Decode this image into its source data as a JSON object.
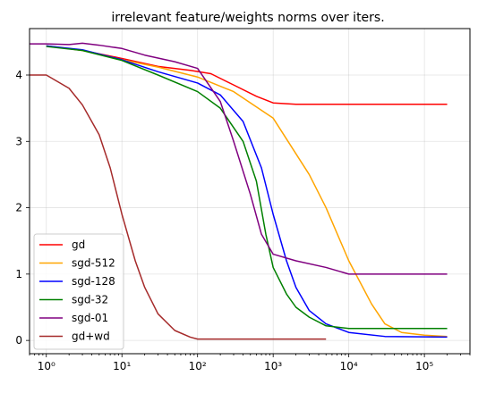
{
  "chart_data": {
    "type": "line",
    "title": "irrelevant feature/weights norms over iters.",
    "xlabel": "",
    "ylabel": "",
    "xscale": "log",
    "xlim": [
      0.6,
      400000
    ],
    "ylim": [
      -0.2,
      4.7
    ],
    "grid": true,
    "legend_position": "lower-left",
    "x_ticks": [
      1,
      10,
      100,
      1000,
      10000,
      100000
    ],
    "x_tick_labels": [
      "10⁰",
      "10¹",
      "10²",
      "10³",
      "10⁴",
      "10⁵"
    ],
    "y_ticks": [
      0,
      1,
      2,
      3,
      4
    ],
    "y_tick_labels": [
      "0",
      "1",
      "2",
      "3",
      "4"
    ],
    "series": [
      {
        "name": "gd",
        "color": "#ff0000",
        "points": [
          [
            1,
            4.44
          ],
          [
            3,
            4.37
          ],
          [
            10,
            4.25
          ],
          [
            30,
            4.13
          ],
          [
            80,
            4.07
          ],
          [
            150,
            4.02
          ],
          [
            300,
            3.85
          ],
          [
            600,
            3.68
          ],
          [
            1000,
            3.58
          ],
          [
            2000,
            3.56
          ],
          [
            10000,
            3.56
          ],
          [
            200000,
            3.56
          ]
        ]
      },
      {
        "name": "sgd-512",
        "color": "#ffa500",
        "points": [
          [
            1,
            4.44
          ],
          [
            3,
            4.37
          ],
          [
            10,
            4.23
          ],
          [
            30,
            4.12
          ],
          [
            100,
            3.97
          ],
          [
            300,
            3.75
          ],
          [
            1000,
            3.35
          ],
          [
            3000,
            2.5
          ],
          [
            5000,
            2.0
          ],
          [
            10000,
            1.2
          ],
          [
            20000,
            0.55
          ],
          [
            30000,
            0.25
          ],
          [
            50000,
            0.12
          ],
          [
            100000,
            0.08
          ],
          [
            200000,
            0.06
          ]
        ]
      },
      {
        "name": "sgd-128",
        "color": "#0000ff",
        "points": [
          [
            1,
            4.44
          ],
          [
            3,
            4.38
          ],
          [
            10,
            4.23
          ],
          [
            30,
            4.05
          ],
          [
            100,
            3.88
          ],
          [
            200,
            3.7
          ],
          [
            400,
            3.3
          ],
          [
            700,
            2.6
          ],
          [
            1000,
            1.9
          ],
          [
            1500,
            1.2
          ],
          [
            2000,
            0.8
          ],
          [
            3000,
            0.45
          ],
          [
            5000,
            0.25
          ],
          [
            10000,
            0.12
          ],
          [
            30000,
            0.06
          ],
          [
            200000,
            0.05
          ]
        ]
      },
      {
        "name": "sgd-32",
        "color": "#008000",
        "points": [
          [
            1,
            4.43
          ],
          [
            3,
            4.37
          ],
          [
            10,
            4.22
          ],
          [
            30,
            4.0
          ],
          [
            100,
            3.75
          ],
          [
            200,
            3.5
          ],
          [
            400,
            3.0
          ],
          [
            600,
            2.4
          ],
          [
            800,
            1.6
          ],
          [
            1000,
            1.1
          ],
          [
            1500,
            0.7
          ],
          [
            2000,
            0.5
          ],
          [
            3000,
            0.35
          ],
          [
            5000,
            0.22
          ],
          [
            10000,
            0.18
          ],
          [
            100000,
            0.18
          ],
          [
            200000,
            0.18
          ]
        ]
      },
      {
        "name": "sgd-01",
        "color": "#800080",
        "points": [
          [
            0.6,
            4.47
          ],
          [
            1,
            4.47
          ],
          [
            2,
            4.46
          ],
          [
            3,
            4.48
          ],
          [
            5,
            4.45
          ],
          [
            10,
            4.4
          ],
          [
            20,
            4.3
          ],
          [
            50,
            4.2
          ],
          [
            100,
            4.1
          ],
          [
            200,
            3.6
          ],
          [
            300,
            3.0
          ],
          [
            500,
            2.2
          ],
          [
            700,
            1.6
          ],
          [
            1000,
            1.3
          ],
          [
            2000,
            1.2
          ],
          [
            5000,
            1.1
          ],
          [
            10000,
            1.0
          ],
          [
            200000,
            1.0
          ]
        ]
      },
      {
        "name": "gd+wd",
        "color": "#a52a2a",
        "points": [
          [
            0.6,
            4.0
          ],
          [
            1,
            4.0
          ],
          [
            2,
            3.8
          ],
          [
            3,
            3.55
          ],
          [
            5,
            3.1
          ],
          [
            7,
            2.6
          ],
          [
            10,
            1.9
          ],
          [
            15,
            1.2
          ],
          [
            20,
            0.8
          ],
          [
            30,
            0.4
          ],
          [
            50,
            0.15
          ],
          [
            80,
            0.05
          ],
          [
            100,
            0.02
          ],
          [
            1000,
            0.02
          ],
          [
            3000,
            0.02
          ],
          [
            5000,
            0.02
          ]
        ]
      }
    ]
  }
}
